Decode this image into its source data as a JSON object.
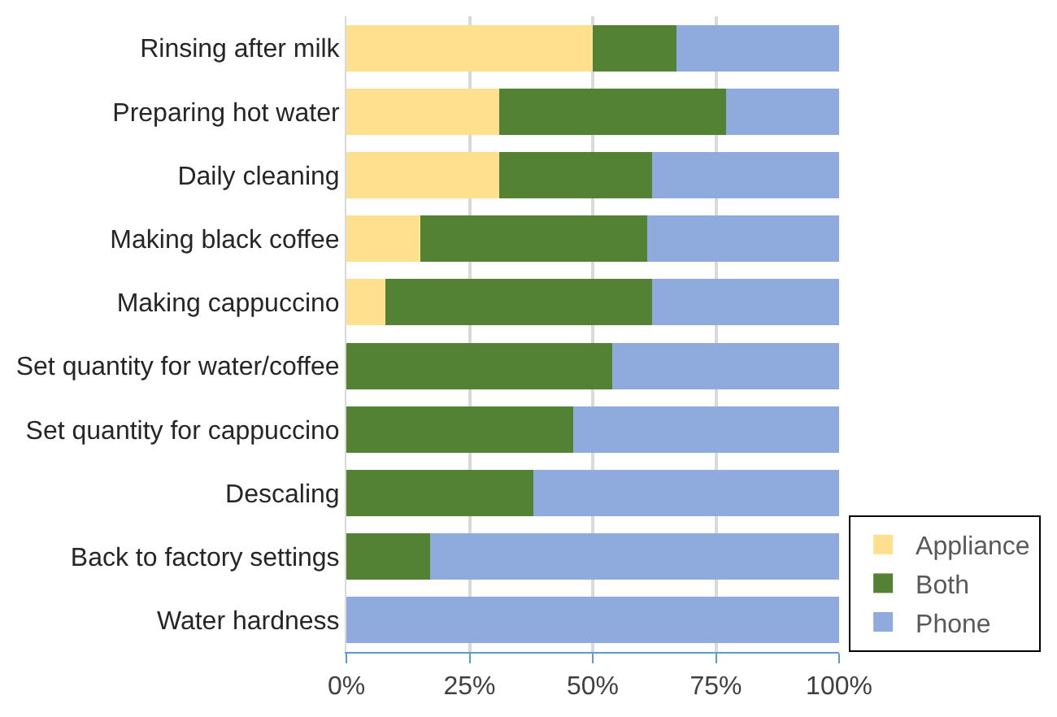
{
  "chart_data": {
    "type": "bar",
    "orientation": "horizontal",
    "stacked": true,
    "categories": [
      "Rinsing after milk",
      "Preparing hot water",
      "Daily cleaning",
      "Making black coffee",
      "Making cappuccino",
      "Set quantity for water/coffee",
      "Set quantity for cappuccino",
      "Descaling",
      "Back to factory settings",
      "Water hardness"
    ],
    "series": [
      {
        "name": "Appliance",
        "color": "#ffe08f",
        "values": [
          50,
          31,
          31,
          15,
          8,
          0,
          0,
          0,
          0,
          0
        ]
      },
      {
        "name": "Both",
        "color": "#548235",
        "values": [
          17,
          46,
          31,
          46,
          54,
          54,
          46,
          38,
          17,
          0
        ]
      },
      {
        "name": "Phone",
        "color": "#8faadc",
        "values": [
          33,
          23,
          38,
          39,
          38,
          46,
          54,
          62,
          83,
          100
        ]
      }
    ],
    "xlim": [
      0,
      100
    ],
    "xticks": [
      {
        "value": 0,
        "label": "0%"
      },
      {
        "value": 25,
        "label": "25%"
      },
      {
        "value": 50,
        "label": "50%"
      },
      {
        "value": 75,
        "label": "75%"
      },
      {
        "value": 100,
        "label": "100%"
      }
    ],
    "grid": "x",
    "legend": "bottom right"
  }
}
